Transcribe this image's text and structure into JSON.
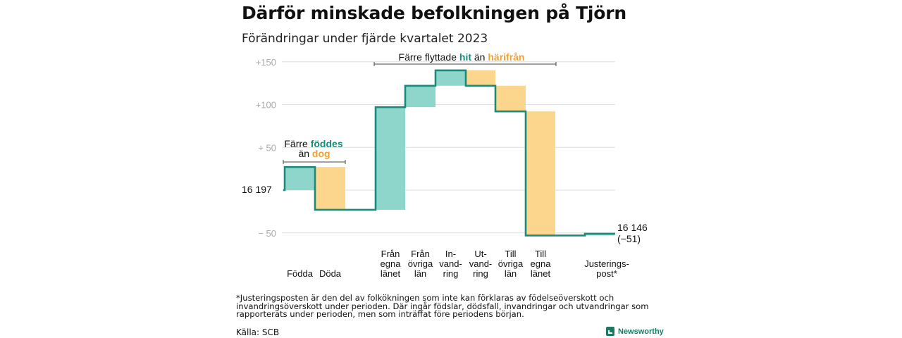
{
  "title": "Därför minskade befolkningen på Tjörn",
  "subtitle": "Förändringar under fjärde kvartalet 2023",
  "colors": {
    "teal": "#8ed6cc",
    "tealLine": "#1a8a7a",
    "orange": "#fbd68c",
    "orangeText": "#f0a030",
    "grid": "#dddddd",
    "tick": "#aaaaaa"
  },
  "chart_data": {
    "type": "waterfall",
    "yticks": [
      "+150",
      "+100",
      "+ 50",
      "− 50"
    ],
    "ylim": [
      -60,
      160
    ],
    "start_value": 16197,
    "start_label": "16  197",
    "end_value": 16146,
    "end_label": "16 146",
    "end_change_label": "(−51)",
    "steps": [
      {
        "label": "Födda",
        "change": 27,
        "sign": "pos"
      },
      {
        "label": "Döda",
        "change": -50,
        "sign": "neg"
      },
      {
        "label": "Från egna länet",
        "change": 120,
        "sign": "pos"
      },
      {
        "label": "Från övriga län",
        "change": 25,
        "sign": "pos"
      },
      {
        "label": "In-vandring",
        "change": 18,
        "sign": "pos"
      },
      {
        "label": "Ut-vandring",
        "change": -18,
        "sign": "neg"
      },
      {
        "label": "Till övriga län",
        "change": -30,
        "sign": "neg"
      },
      {
        "label": "Till egna länet",
        "change": -145,
        "sign": "neg"
      },
      {
        "label": "Justerings-post*",
        "change": 2,
        "sign": "pos"
      }
    ]
  },
  "annot_born": {
    "pre": "Färre ",
    "hi1": "föddes",
    "mid": "än ",
    "hi2": "dog"
  },
  "annot_moved": {
    "pre": "Färre flyttade ",
    "hi1": "hit",
    "mid": " än ",
    "hi2": "härifrån"
  },
  "xlabels": [
    {
      "lines": [
        "Födda"
      ]
    },
    {
      "lines": [
        "Döda"
      ]
    },
    {
      "lines": [
        "Från",
        "egna",
        "länet"
      ]
    },
    {
      "lines": [
        "Från",
        "övriga",
        "län"
      ]
    },
    {
      "lines": [
        "In-",
        "vand-",
        "ring"
      ]
    },
    {
      "lines": [
        "Ut-",
        "vand-",
        "ring"
      ]
    },
    {
      "lines": [
        "Till",
        "övriga",
        "län"
      ]
    },
    {
      "lines": [
        "Till",
        "egna",
        "länet"
      ]
    },
    {
      "lines": [
        "Justerings-",
        "post*"
      ]
    }
  ],
  "footnote": "*Justeringsposten är den del av folkökningen som inte kan förklaras av födelseöverskott och invandringsöverskott under perioden. Där ingår födslar, dödsfall, invandringar och utvandringar som rapporterats under perioden, men som inträffat före periodens början.",
  "source": "Källa: SCB",
  "brand": "Newsworthy"
}
